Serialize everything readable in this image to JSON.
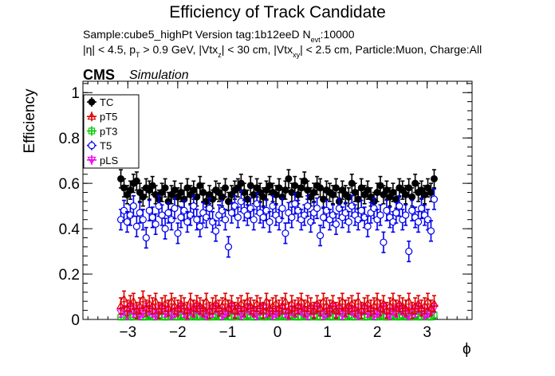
{
  "chart_data": {
    "type": "scatter",
    "title": "Efficiency of Track Candidate",
    "subtitle_line1": "Sample:cube5_highPt   Version tag:1b12eeD  N",
    "subtitle_line1_sub": "evt",
    "subtitle_line1_end": ":10000",
    "subtitle_line2_parts": [
      "|η| < 4.5, p",
      "T",
      " > 0.9 GeV, |Vtx",
      "z",
      "| < 30 cm, |Vtx",
      "xy",
      "| < 2.5 cm, Particle:Muon, Charge:All"
    ],
    "experiment_label": "CMS",
    "experiment_sublabel": "Simulation",
    "xlabel": "ϕ",
    "ylabel": "Efficiency",
    "xlim": [
      -3.9,
      3.9
    ],
    "ylim": [
      0,
      1.05
    ],
    "xticks": [
      -3,
      -2,
      -1,
      0,
      1,
      2,
      3
    ],
    "xtick_labels": [
      "−3",
      "−2",
      "−1",
      "0",
      "1",
      "2",
      "3"
    ],
    "yticks": [
      0,
      0.2,
      0.4,
      0.6,
      0.8,
      1
    ],
    "ytick_labels": [
      "0",
      "0.2",
      "0.4",
      "0.6",
      "0.8",
      "1"
    ],
    "grid": false,
    "legend_position": "top-left",
    "x_range_points": [
      -3.14,
      3.14
    ],
    "n_points": 100,
    "series": [
      {
        "name": "TC",
        "color": "#000000",
        "marker": "filled-circle",
        "err": 0.04,
        "values": [
          0.62,
          0.58,
          0.55,
          0.57,
          0.6,
          0.61,
          0.56,
          0.54,
          0.58,
          0.57,
          0.59,
          0.55,
          0.53,
          0.56,
          0.58,
          0.52,
          0.55,
          0.57,
          0.54,
          0.56,
          0.53,
          0.58,
          0.55,
          0.57,
          0.54,
          0.59,
          0.56,
          0.52,
          0.55,
          0.53,
          0.57,
          0.56,
          0.54,
          0.58,
          0.52,
          0.55,
          0.57,
          0.58,
          0.6,
          0.56,
          0.53,
          0.59,
          0.55,
          0.58,
          0.56,
          0.54,
          0.57,
          0.59,
          0.56,
          0.55,
          0.58,
          0.54,
          0.57,
          0.62,
          0.56,
          0.59,
          0.55,
          0.58,
          0.61,
          0.57,
          0.54,
          0.56,
          0.59,
          0.58,
          0.53,
          0.57,
          0.56,
          0.55,
          0.58,
          0.52,
          0.57,
          0.55,
          0.54,
          0.6,
          0.56,
          0.53,
          0.58,
          0.55,
          0.57,
          0.54,
          0.52,
          0.56,
          0.59,
          0.55,
          0.57,
          0.54,
          0.56,
          0.53,
          0.58,
          0.57,
          0.55,
          0.58,
          0.54,
          0.6,
          0.56,
          0.57,
          0.55,
          0.58,
          0.56,
          0.62
        ]
      },
      {
        "name": "pT5",
        "color": "#e00000",
        "marker": "open-triangle",
        "err": 0.035,
        "values": [
          0.06,
          0.09,
          0.05,
          0.07,
          0.08,
          0.04,
          0.06,
          0.09,
          0.05,
          0.07,
          0.06,
          0.08,
          0.04,
          0.06,
          0.07,
          0.05,
          0.08,
          0.06,
          0.05,
          0.07,
          0.06,
          0.04,
          0.08,
          0.05,
          0.07,
          0.06,
          0.05,
          0.08,
          0.04,
          0.06,
          0.07,
          0.05,
          0.06,
          0.08,
          0.05,
          0.07,
          0.04,
          0.06,
          0.07,
          0.05,
          0.08,
          0.06,
          0.05,
          0.07,
          0.06,
          0.04,
          0.08,
          0.05,
          0.06,
          0.07,
          0.05,
          0.06,
          0.08,
          0.04,
          0.07,
          0.05,
          0.06,
          0.08,
          0.05,
          0.07,
          0.06,
          0.04,
          0.07,
          0.05,
          0.08,
          0.06,
          0.05,
          0.07,
          0.04,
          0.06,
          0.08,
          0.05,
          0.06,
          0.07,
          0.05,
          0.08,
          0.04,
          0.06,
          0.07,
          0.05,
          0.06,
          0.08,
          0.05,
          0.07,
          0.04,
          0.06,
          0.08,
          0.05,
          0.07,
          0.06,
          0.05,
          0.08,
          0.04,
          0.06,
          0.07,
          0.05,
          0.06,
          0.08,
          0.05,
          0.07
        ]
      },
      {
        "name": "pT3",
        "color": "#00cc00",
        "marker": "open-square",
        "err": 0.015,
        "values": [
          0.01,
          0.01,
          0.02,
          0.01,
          0.01,
          0.02,
          0.01,
          0.01,
          0.01,
          0.02,
          0.01,
          0.01,
          0.02,
          0.01,
          0.01,
          0.01,
          0.02,
          0.01,
          0.01,
          0.02,
          0.01,
          0.01,
          0.01,
          0.02,
          0.01,
          0.01,
          0.02,
          0.01,
          0.01,
          0.01,
          0.02,
          0.01,
          0.01,
          0.02,
          0.01,
          0.01,
          0.01,
          0.02,
          0.01,
          0.01,
          0.02,
          0.01,
          0.01,
          0.01,
          0.02,
          0.01,
          0.01,
          0.02,
          0.01,
          0.01,
          0.01,
          0.02,
          0.01,
          0.01,
          0.02,
          0.01,
          0.01,
          0.01,
          0.02,
          0.01,
          0.01,
          0.02,
          0.01,
          0.01,
          0.01,
          0.02,
          0.01,
          0.01,
          0.02,
          0.01,
          0.01,
          0.01,
          0.02,
          0.01,
          0.01,
          0.02,
          0.01,
          0.01,
          0.01,
          0.02,
          0.01,
          0.01,
          0.02,
          0.01,
          0.01,
          0.01,
          0.02,
          0.01,
          0.01,
          0.02,
          0.01,
          0.01,
          0.01,
          0.02,
          0.01,
          0.01,
          0.02,
          0.01,
          0.01,
          0.02
        ]
      },
      {
        "name": "T5",
        "color": "#0000ee",
        "marker": "open-circle",
        "err": 0.045,
        "values": [
          0.44,
          0.48,
          0.43,
          0.46,
          0.5,
          0.41,
          0.47,
          0.44,
          0.36,
          0.48,
          0.45,
          0.42,
          0.5,
          0.46,
          0.4,
          0.47,
          0.44,
          0.49,
          0.38,
          0.45,
          0.48,
          0.43,
          0.46,
          0.5,
          0.44,
          0.41,
          0.47,
          0.45,
          0.49,
          0.43,
          0.39,
          0.46,
          0.48,
          0.44,
          0.32,
          0.47,
          0.5,
          0.45,
          0.52,
          0.48,
          0.46,
          0.49,
          0.44,
          0.51,
          0.47,
          0.45,
          0.48,
          0.43,
          0.5,
          0.46,
          0.44,
          0.49,
          0.38,
          0.47,
          0.45,
          0.51,
          0.48,
          0.44,
          0.46,
          0.5,
          0.43,
          0.47,
          0.49,
          0.37,
          0.45,
          0.48,
          0.44,
          0.46,
          0.42,
          0.49,
          0.45,
          0.47,
          0.43,
          0.5,
          0.46,
          0.44,
          0.48,
          0.45,
          0.41,
          0.47,
          0.49,
          0.44,
          0.46,
          0.34,
          0.48,
          0.45,
          0.43,
          0.47,
          0.5,
          0.44,
          0.46,
          0.3,
          0.48,
          0.45,
          0.43,
          0.49,
          0.46,
          0.44,
          0.39,
          0.53
        ]
      },
      {
        "name": "pLS",
        "color": "#ee00ee",
        "marker": "open-triangle-down",
        "err": 0.02,
        "values": [
          0.03,
          0.04,
          0.02,
          0.05,
          0.03,
          0.04,
          0.02,
          0.03,
          0.05,
          0.04,
          0.03,
          0.02,
          0.04,
          0.05,
          0.03,
          0.04,
          0.02,
          0.03,
          0.04,
          0.05,
          0.03,
          0.02,
          0.04,
          0.03,
          0.05,
          0.04,
          0.03,
          0.02,
          0.04,
          0.03,
          0.05,
          0.04,
          0.02,
          0.03,
          0.04,
          0.05,
          0.03,
          0.04,
          0.02,
          0.03,
          0.05,
          0.04,
          0.03,
          0.02,
          0.04,
          0.05,
          0.03,
          0.04,
          0.02,
          0.03,
          0.04,
          0.05,
          0.03,
          0.02,
          0.04,
          0.03,
          0.05,
          0.04,
          0.03,
          0.02,
          0.04,
          0.03,
          0.05,
          0.04,
          0.02,
          0.03,
          0.04,
          0.05,
          0.03,
          0.04,
          0.02,
          0.03,
          0.05,
          0.04,
          0.03,
          0.02,
          0.04,
          0.05,
          0.03,
          0.04,
          0.02,
          0.03,
          0.04,
          0.05,
          0.03,
          0.02,
          0.04,
          0.03,
          0.05,
          0.04,
          0.03,
          0.02,
          0.04,
          0.03,
          0.05,
          0.04,
          0.02,
          0.03,
          0.04,
          0.05
        ]
      }
    ]
  }
}
